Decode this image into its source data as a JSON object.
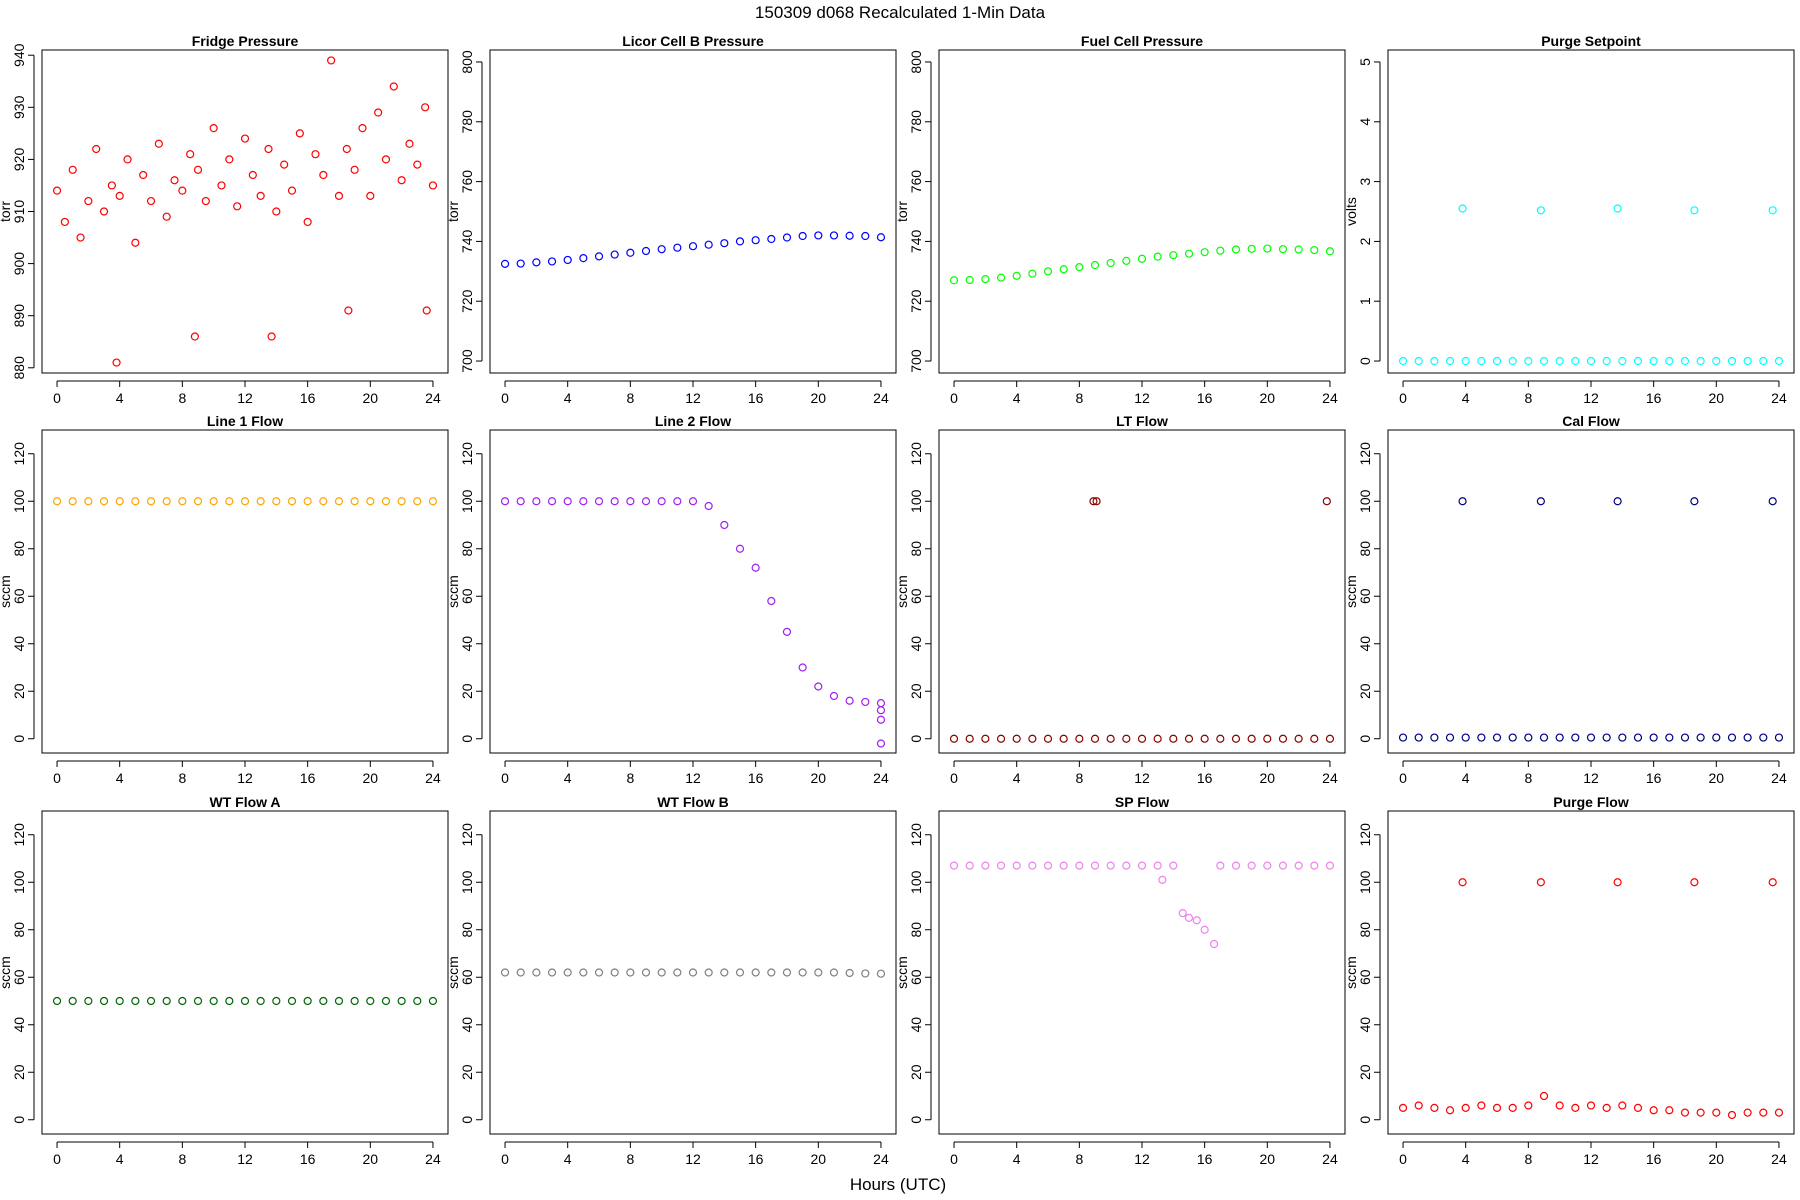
{
  "title": "150309   d068   Recalculated 1-Min Data",
  "xlabel": "Hours (UTC)",
  "chart_data": [
    {
      "type": "scatter",
      "title": "Fridge Pressure",
      "ylabel": "torr",
      "color": "#ff0000",
      "xlim": [
        -0.96,
        24.96
      ],
      "xticks": [
        0,
        4,
        8,
        12,
        16,
        20,
        24
      ],
      "ylim": [
        879,
        941
      ],
      "yticks": [
        880,
        890,
        900,
        910,
        920,
        930,
        940
      ],
      "x": [
        0,
        0.5,
        1,
        1.5,
        2,
        2.5,
        3,
        3.5,
        3.8,
        4,
        4.5,
        5,
        5.5,
        6,
        6.5,
        7,
        7.5,
        8,
        8.5,
        8.8,
        9,
        9.5,
        10,
        10.5,
        11,
        11.5,
        12,
        12.5,
        13,
        13.5,
        13.7,
        14,
        14.5,
        15,
        15.5,
        16,
        16.5,
        17,
        17.5,
        18,
        18.5,
        18.6,
        19,
        19.5,
        20,
        20.5,
        21,
        21.5,
        22,
        22.5,
        23,
        23.5,
        23.6,
        24
      ],
      "values": [
        914,
        908,
        918,
        905,
        912,
        922,
        910,
        915,
        881,
        913,
        920,
        904,
        917,
        912,
        923,
        909,
        916,
        914,
        921,
        886,
        918,
        912,
        926,
        915,
        920,
        911,
        924,
        917,
        913,
        922,
        886,
        910,
        919,
        914,
        925,
        908,
        921,
        917,
        939,
        913,
        922,
        891,
        918,
        926,
        913,
        929,
        920,
        934,
        916,
        923,
        919,
        930,
        891,
        915
      ]
    },
    {
      "type": "scatter",
      "title": "Licor Cell B Pressure",
      "ylabel": "torr",
      "color": "#0000ff",
      "xlim": [
        -0.96,
        24.96
      ],
      "xticks": [
        0,
        4,
        8,
        12,
        16,
        20,
        24
      ],
      "ylim": [
        696,
        804
      ],
      "yticks": [
        700,
        720,
        740,
        760,
        780,
        800
      ],
      "x": [
        0,
        1,
        2,
        3,
        4,
        5,
        6,
        7,
        8,
        9,
        10,
        11,
        12,
        13,
        14,
        15,
        16,
        17,
        18,
        19,
        20,
        21,
        22,
        23,
        24
      ],
      "values": [
        732.5,
        732.6,
        733,
        733.3,
        733.8,
        734.4,
        735,
        735.6,
        736.2,
        736.8,
        737.4,
        737.9,
        738.4,
        738.9,
        739.4,
        740,
        740.4,
        740.8,
        741.3,
        741.8,
        742,
        742,
        741.9,
        741.8,
        741.4
      ]
    },
    {
      "type": "scatter",
      "title": "Fuel Cell Pressure",
      "ylabel": "torr",
      "color": "#00ff00",
      "xlim": [
        -0.96,
        24.96
      ],
      "xticks": [
        0,
        4,
        8,
        12,
        16,
        20,
        24
      ],
      "ylim": [
        696,
        804
      ],
      "yticks": [
        700,
        720,
        740,
        760,
        780,
        800
      ],
      "x": [
        0,
        1,
        2,
        3,
        4,
        5,
        6,
        7,
        8,
        9,
        10,
        11,
        12,
        13,
        14,
        15,
        16,
        17,
        18,
        19,
        20,
        21,
        22,
        23,
        24
      ],
      "values": [
        727,
        727.1,
        727.4,
        727.9,
        728.5,
        729.2,
        730,
        730.7,
        731.4,
        732.1,
        732.8,
        733.5,
        734.2,
        734.9,
        735.4,
        735.9,
        736.4,
        736.9,
        737.3,
        737.5,
        737.6,
        737.4,
        737.3,
        737.1,
        736.7
      ]
    },
    {
      "type": "scatter",
      "title": "Purge Setpoint",
      "ylabel": "volts",
      "color": "#00ffff",
      "xlim": [
        -0.96,
        24.96
      ],
      "xticks": [
        0,
        4,
        8,
        12,
        16,
        20,
        24
      ],
      "ylim": [
        -0.2,
        5.2
      ],
      "yticks": [
        0,
        1,
        2,
        3,
        4,
        5
      ],
      "x": [
        0,
        1,
        2,
        3,
        4,
        5,
        6,
        7,
        8,
        9,
        10,
        11,
        12,
        13,
        14,
        15,
        16,
        17,
        18,
        19,
        20,
        21,
        22,
        23,
        24,
        3.8,
        8.8,
        13.7,
        18.6,
        23.6
      ],
      "values": [
        0,
        0,
        0,
        0,
        0,
        0,
        0,
        0,
        0,
        0,
        0,
        0,
        0,
        0,
        0,
        0,
        0,
        0,
        0,
        0,
        0,
        0,
        0,
        0,
        0,
        2.55,
        2.52,
        2.55,
        2.52,
        2.52
      ]
    },
    {
      "type": "scatter",
      "title": "Line 1 Flow",
      "ylabel": "sccm",
      "color": "#ffa500",
      "xlim": [
        -0.96,
        24.96
      ],
      "xticks": [
        0,
        4,
        8,
        12,
        16,
        20,
        24
      ],
      "ylim": [
        -6,
        130
      ],
      "yticks": [
        0,
        20,
        40,
        60,
        80,
        100,
        120
      ],
      "x": [
        0,
        1,
        2,
        3,
        4,
        5,
        6,
        7,
        8,
        9,
        10,
        11,
        12,
        13,
        14,
        15,
        16,
        17,
        18,
        19,
        20,
        21,
        22,
        23,
        24
      ],
      "values": [
        100,
        100,
        100,
        100,
        100,
        100,
        100,
        100,
        100,
        100,
        100,
        100,
        100,
        100,
        100,
        100,
        100,
        100,
        100,
        100,
        100,
        100,
        100,
        100,
        100
      ]
    },
    {
      "type": "scatter",
      "title": "Line 2 Flow",
      "ylabel": "sccm",
      "color": "#a020f0",
      "xlim": [
        -0.96,
        24.96
      ],
      "xticks": [
        0,
        4,
        8,
        12,
        16,
        20,
        24
      ],
      "ylim": [
        -6,
        130
      ],
      "yticks": [
        0,
        20,
        40,
        60,
        80,
        100,
        120
      ],
      "x": [
        0,
        1,
        2,
        3,
        4,
        5,
        6,
        7,
        8,
        9,
        10,
        11,
        12,
        13,
        14,
        15,
        16,
        17,
        18,
        19,
        20,
        21,
        22,
        23,
        24,
        24,
        24,
        24
      ],
      "values": [
        100,
        100,
        100,
        100,
        100,
        100,
        100,
        100,
        100,
        100,
        100,
        100,
        100,
        98,
        90,
        80,
        72,
        58,
        45,
        30,
        22,
        18,
        16,
        15.5,
        15,
        12,
        8,
        -2
      ]
    },
    {
      "type": "scatter",
      "title": "LT Flow",
      "ylabel": "sccm",
      "color": "#8b0000",
      "xlim": [
        -0.96,
        24.96
      ],
      "xticks": [
        0,
        4,
        8,
        12,
        16,
        20,
        24
      ],
      "ylim": [
        -6,
        130
      ],
      "yticks": [
        0,
        20,
        40,
        60,
        80,
        100,
        120
      ],
      "x": [
        0,
        1,
        2,
        3,
        4,
        5,
        6,
        7,
        8,
        9,
        10,
        11,
        12,
        13,
        14,
        15,
        16,
        17,
        18,
        19,
        20,
        21,
        22,
        23,
        24,
        8.9,
        9.1,
        23.8
      ],
      "values": [
        0,
        0,
        0,
        0,
        0,
        0,
        0,
        0,
        0,
        0,
        0,
        0,
        0,
        0,
        0,
        0,
        0,
        0,
        0,
        0,
        0,
        0,
        0,
        0,
        0,
        100,
        100,
        100
      ]
    },
    {
      "type": "scatter",
      "title": "Cal Flow",
      "ylabel": "sccm",
      "color": "#000080",
      "xlim": [
        -0.96,
        24.96
      ],
      "xticks": [
        0,
        4,
        8,
        12,
        16,
        20,
        24
      ],
      "ylim": [
        -6,
        130
      ],
      "yticks": [
        0,
        20,
        40,
        60,
        80,
        100,
        120
      ],
      "x": [
        0,
        1,
        2,
        3,
        4,
        5,
        6,
        7,
        8,
        9,
        10,
        11,
        12,
        13,
        14,
        15,
        16,
        17,
        18,
        19,
        20,
        21,
        22,
        23,
        24,
        3.8,
        8.8,
        13.7,
        18.6,
        23.6
      ],
      "values": [
        0.5,
        0.5,
        0.5,
        0.5,
        0.5,
        0.5,
        0.5,
        0.5,
        0.5,
        0.5,
        0.5,
        0.5,
        0.5,
        0.5,
        0.5,
        0.5,
        0.5,
        0.5,
        0.5,
        0.5,
        0.5,
        0.5,
        0.5,
        0.5,
        0.5,
        100,
        100,
        100,
        100,
        100
      ]
    },
    {
      "type": "scatter",
      "title": "WT Flow A",
      "ylabel": "sccm",
      "color": "#006400",
      "xlim": [
        -0.96,
        24.96
      ],
      "xticks": [
        0,
        4,
        8,
        12,
        16,
        20,
        24
      ],
      "ylim": [
        -6,
        130
      ],
      "yticks": [
        0,
        20,
        40,
        60,
        80,
        100,
        120
      ],
      "x": [
        0,
        1,
        2,
        3,
        4,
        5,
        6,
        7,
        8,
        9,
        10,
        11,
        12,
        13,
        14,
        15,
        16,
        17,
        18,
        19,
        20,
        21,
        22,
        23,
        24
      ],
      "values": [
        50,
        50,
        50,
        50,
        50,
        50,
        50,
        50,
        50,
        50,
        50,
        50,
        50,
        50,
        50,
        50,
        50,
        50,
        50,
        50,
        50,
        50,
        50,
        50,
        50
      ]
    },
    {
      "type": "scatter",
      "title": "WT Flow B",
      "ylabel": "sccm",
      "color": "#808080",
      "xlim": [
        -0.96,
        24.96
      ],
      "xticks": [
        0,
        4,
        8,
        12,
        16,
        20,
        24
      ],
      "ylim": [
        -6,
        130
      ],
      "yticks": [
        0,
        20,
        40,
        60,
        80,
        100,
        120
      ],
      "x": [
        0,
        1,
        2,
        3,
        4,
        5,
        6,
        7,
        8,
        9,
        10,
        11,
        12,
        13,
        14,
        15,
        16,
        17,
        18,
        19,
        20,
        21,
        22,
        23,
        24
      ],
      "values": [
        62,
        62,
        62,
        62,
        62,
        62,
        62,
        62,
        62,
        62,
        62,
        62,
        62,
        62,
        62,
        62,
        62,
        62,
        62,
        62,
        62,
        62,
        61.8,
        61.6,
        61.5
      ]
    },
    {
      "type": "scatter",
      "title": "SP Flow",
      "ylabel": "sccm",
      "color": "#ee82ee",
      "xlim": [
        -0.96,
        24.96
      ],
      "xticks": [
        0,
        4,
        8,
        12,
        16,
        20,
        24
      ],
      "ylim": [
        -6,
        130
      ],
      "yticks": [
        0,
        20,
        40,
        60,
        80,
        100,
        120
      ],
      "x": [
        0,
        1,
        2,
        3,
        4,
        5,
        6,
        7,
        8,
        9,
        10,
        11,
        12,
        13,
        13.3,
        14,
        14.6,
        15,
        15.5,
        16,
        16.6,
        17,
        18,
        19,
        20,
        21,
        22,
        23,
        24
      ],
      "values": [
        107,
        107,
        107,
        107,
        107,
        107,
        107,
        107,
        107,
        107,
        107,
        107,
        107,
        107,
        101,
        107,
        87,
        85,
        84,
        80,
        74,
        107,
        107,
        107,
        107,
        107,
        107,
        107,
        107
      ]
    },
    {
      "type": "scatter",
      "title": "Purge Flow",
      "ylabel": "sccm",
      "color": "#ff0000",
      "xlim": [
        -0.96,
        24.96
      ],
      "xticks": [
        0,
        4,
        8,
        12,
        16,
        20,
        24
      ],
      "ylim": [
        -6,
        130
      ],
      "yticks": [
        0,
        20,
        40,
        60,
        80,
        100,
        120
      ],
      "x": [
        0,
        1,
        2,
        3,
        4,
        5,
        6,
        7,
        8,
        9,
        10,
        11,
        12,
        13,
        14,
        15,
        16,
        17,
        18,
        19,
        20,
        21,
        22,
        23,
        24,
        3.8,
        8.8,
        13.7,
        18.6,
        23.6
      ],
      "values": [
        5,
        6,
        5,
        4,
        5,
        6,
        5,
        5,
        6,
        10,
        6,
        5,
        6,
        5,
        6,
        5,
        4,
        4,
        3,
        3,
        3,
        2,
        3,
        3,
        3,
        100,
        100,
        100,
        100,
        100
      ]
    }
  ]
}
